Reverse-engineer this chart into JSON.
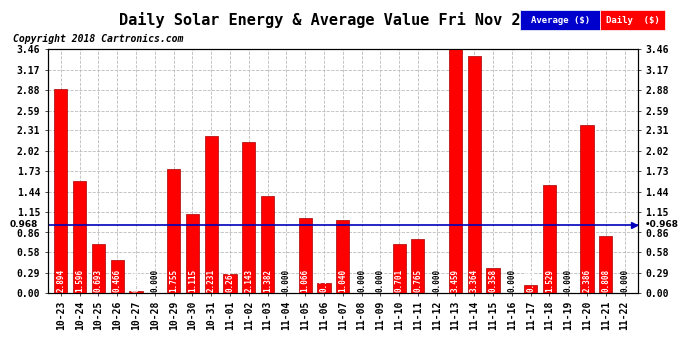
{
  "title": "Daily Solar Energy & Average Value Fri Nov 23 16:19",
  "copyright": "Copyright 2018 Cartronics.com",
  "categories": [
    "10-23",
    "10-24",
    "10-25",
    "10-26",
    "10-27",
    "10-28",
    "10-29",
    "10-30",
    "10-31",
    "11-01",
    "11-02",
    "11-03",
    "11-04",
    "11-05",
    "11-06",
    "11-07",
    "11-08",
    "11-09",
    "11-10",
    "11-11",
    "11-12",
    "11-13",
    "11-14",
    "11-15",
    "11-16",
    "11-17",
    "11-18",
    "11-19",
    "11-20",
    "11-21",
    "11-22"
  ],
  "values": [
    2.894,
    1.596,
    0.693,
    0.466,
    0.03,
    0.0,
    1.755,
    1.115,
    2.231,
    0.264,
    2.143,
    1.382,
    0.0,
    1.066,
    0.135,
    1.04,
    0.0,
    0.0,
    0.701,
    0.765,
    0.0,
    3.459,
    3.364,
    0.358,
    0.0,
    0.116,
    1.529,
    0.0,
    2.386,
    0.808,
    0.0
  ],
  "average_line": 0.968,
  "ylim": [
    0.0,
    3.46
  ],
  "yticks": [
    0.0,
    0.29,
    0.58,
    0.86,
    1.15,
    1.44,
    1.73,
    2.02,
    2.31,
    2.59,
    2.88,
    3.17,
    3.46
  ],
  "bar_color": "#ff0000",
  "bar_edge_color": "#aa0000",
  "avg_line_color": "#0000bb",
  "background_color": "#ffffff",
  "plot_bg_color": "#ffffff",
  "grid_color": "#bbbbbb",
  "title_fontsize": 11,
  "copyright_fontsize": 7,
  "tick_fontsize": 7,
  "value_fontsize": 5.5,
  "legend_avg_color": "#0000cc",
  "legend_daily_color": "#ff0000",
  "avg_label": "Average ($)",
  "daily_label": "Daily  ($)"
}
